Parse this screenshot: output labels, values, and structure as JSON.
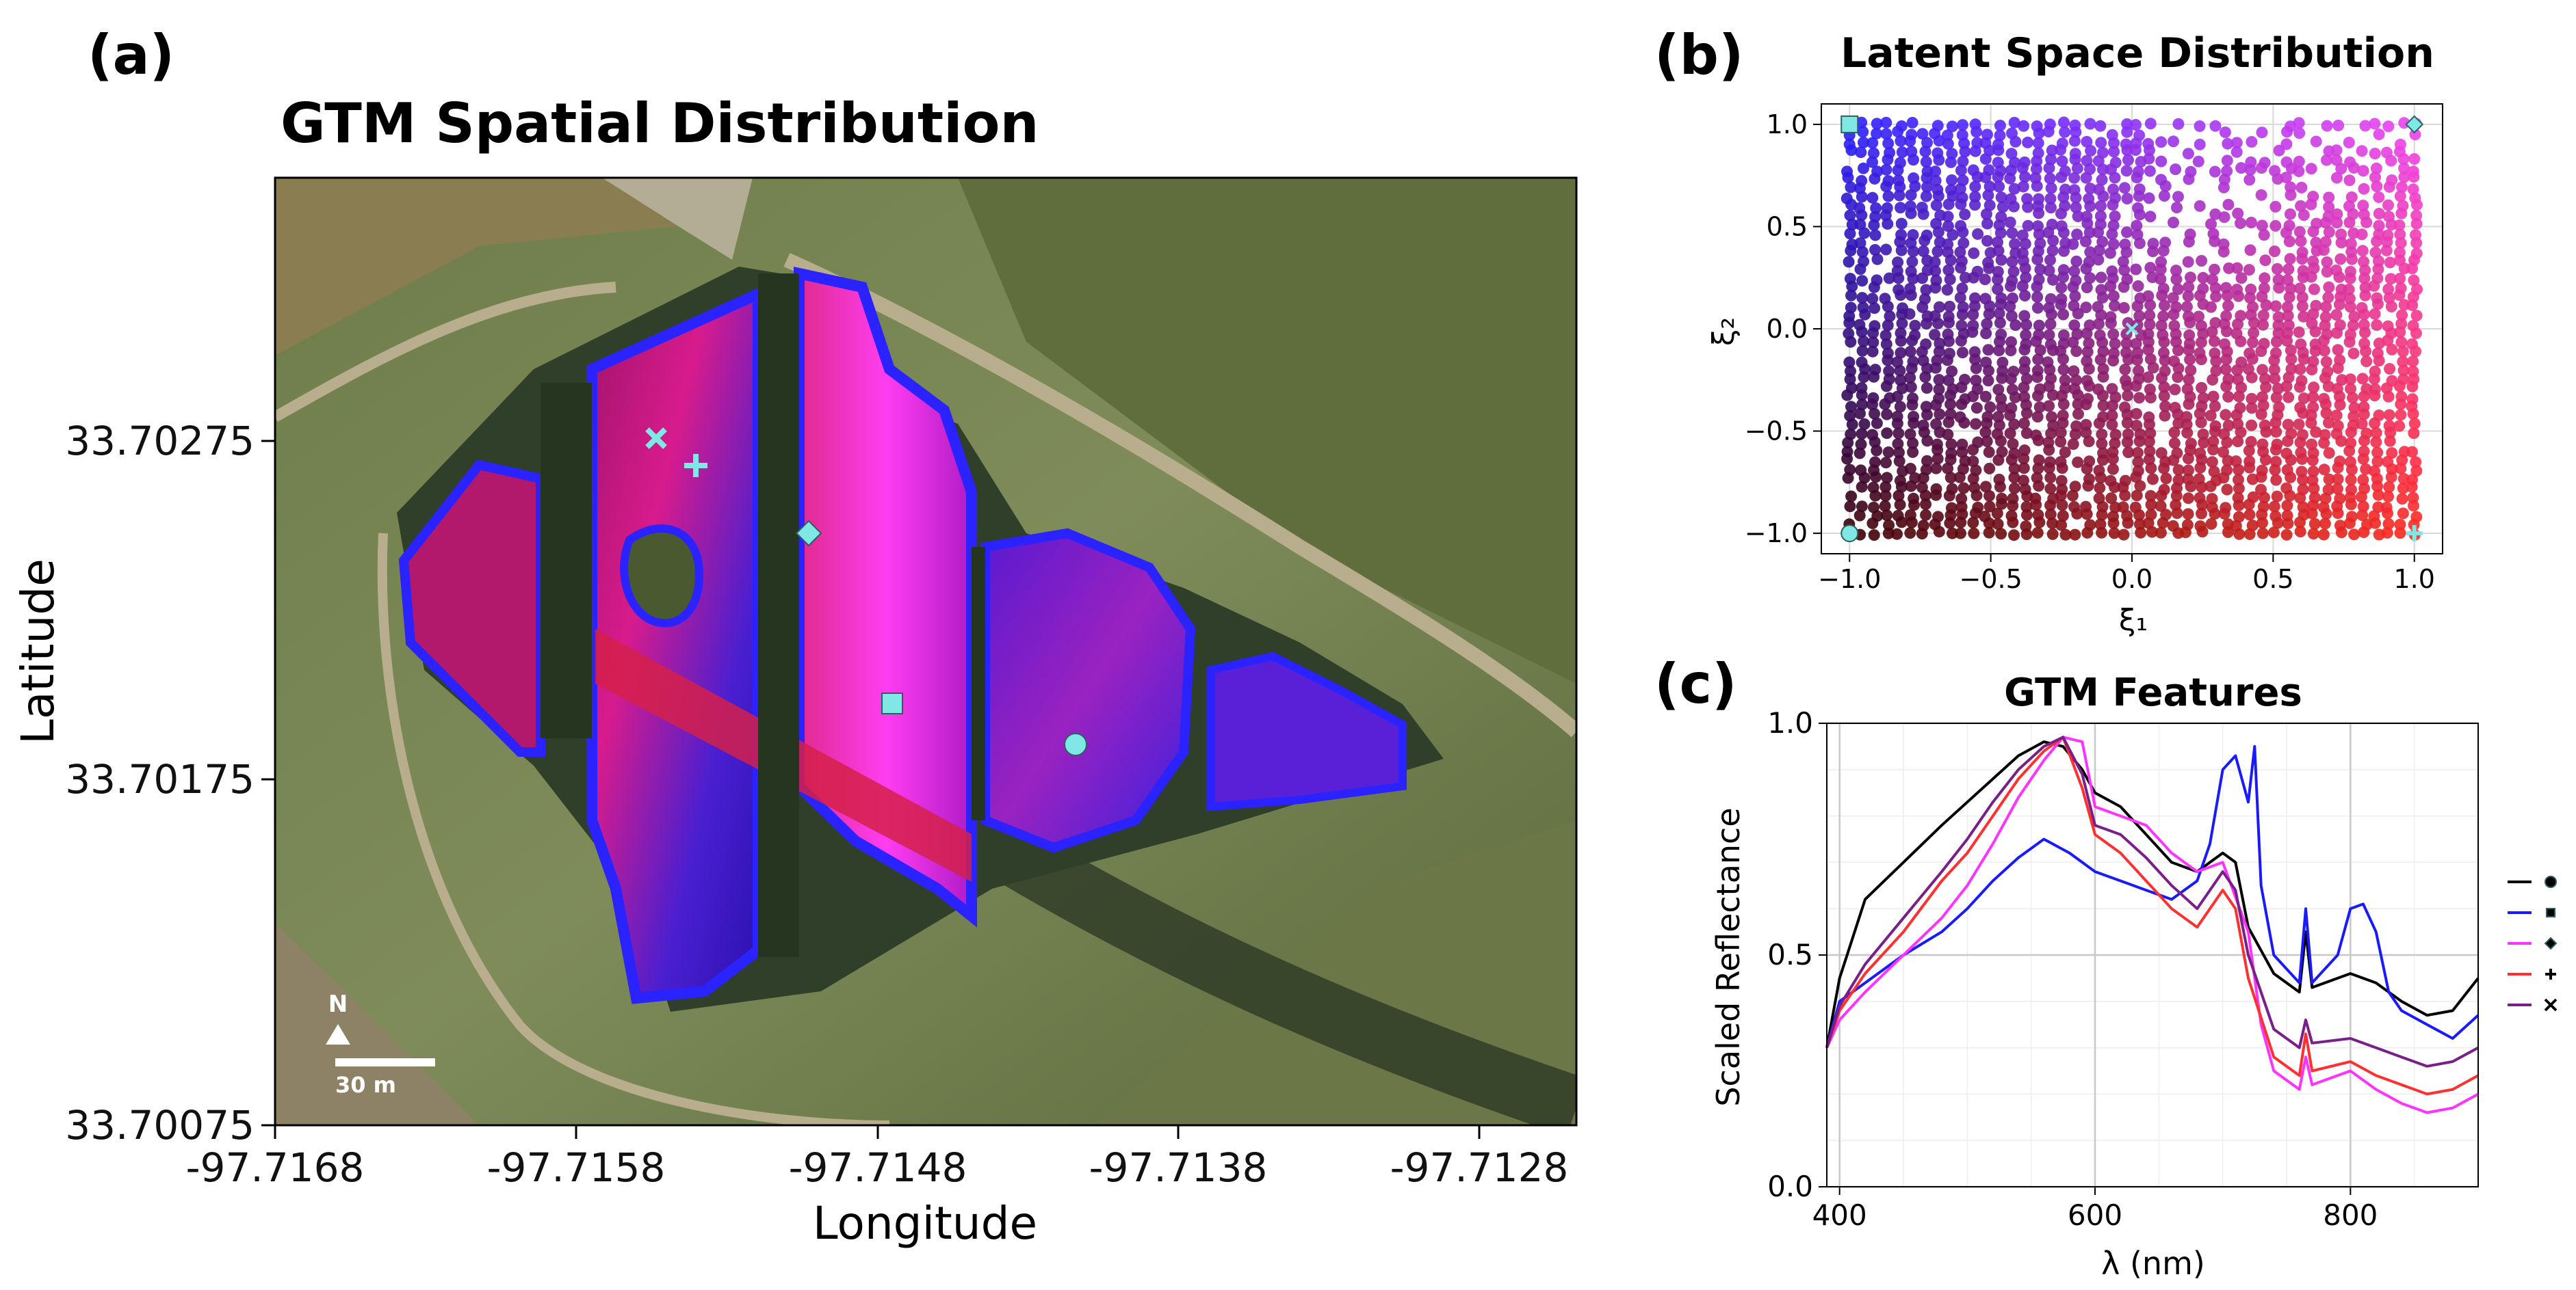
{
  "panels": {
    "a": "(a)",
    "b": "(b)",
    "c": "(c)"
  },
  "map": {
    "title": "GTM Spatial Distribution",
    "xlabel": "Longitude",
    "ylabel": "Latitude",
    "xticks": [
      "-97.7168",
      "-97.7158",
      "-97.7148",
      "-97.7138",
      "-97.7128"
    ],
    "yticks": [
      "33.70275",
      "33.70175",
      "33.70075"
    ],
    "north_label": "N",
    "scale_label": "30 m",
    "markers": [
      {
        "shape": "x",
        "name": "x-marker"
      },
      {
        "shape": "plus",
        "name": "plus-marker"
      },
      {
        "shape": "diamond",
        "name": "diamond-marker"
      },
      {
        "shape": "square",
        "name": "square-marker"
      },
      {
        "shape": "circle",
        "name": "circle-marker"
      }
    ],
    "colors": {
      "marker": "#7fe8e4",
      "low_latent": "#c2185b",
      "high_latent": "#2020ff",
      "magenta": "#ff33ff"
    }
  },
  "chart_data": [
    {
      "id": "latent",
      "type": "scatter",
      "title": "Latent Space Distribution",
      "xlabel": "ξ₁",
      "ylabel": "ξ₂",
      "xlim": [
        -1.1,
        1.1
      ],
      "ylim": [
        -1.1,
        1.1
      ],
      "xticks": [
        -1.0,
        -0.5,
        0.0,
        0.5,
        1.0
      ],
      "yticks": [
        -1.0,
        -0.5,
        0.0,
        0.5,
        1.0
      ],
      "xtick_labels": [
        "−1.0",
        "−0.5",
        "0.0",
        "0.5",
        "1.0"
      ],
      "ytick_labels": [
        "−1.0",
        "−0.5",
        "0.0",
        "0.5",
        "1.0"
      ],
      "grid": true,
      "color_corners": {
        "left_bottom": "#3a0008",
        "right_bottom": "#ff2a20",
        "left_top": "#2a1fff",
        "right_top": "#ee44ee"
      },
      "feature_markers": [
        {
          "shape": "square",
          "x": -1.0,
          "y": 1.0
        },
        {
          "shape": "diamond",
          "x": 1.0,
          "y": 1.0
        },
        {
          "shape": "circle",
          "x": -1.0,
          "y": -1.0
        },
        {
          "shape": "plus",
          "x": 1.0,
          "y": -1.0
        },
        {
          "shape": "x",
          "x": 0.0,
          "y": 0.0
        }
      ]
    },
    {
      "id": "features",
      "type": "line",
      "title": "GTM Features",
      "xlabel": "λ (nm)",
      "ylabel": "Scaled Reflectance",
      "xlim": [
        390,
        900
      ],
      "ylim": [
        0.0,
        1.0
      ],
      "xticks": [
        400,
        600,
        800
      ],
      "yticks": [
        0.0,
        0.5,
        1.0
      ],
      "ytick_labels": [
        "0.0",
        "0.5",
        "1.0"
      ],
      "grid": true,
      "legend_position": "right",
      "series": [
        {
          "marker": "circle",
          "color": "#000000",
          "x": [
            390,
            400,
            420,
            450,
            480,
            500,
            520,
            540,
            560,
            575,
            590,
            600,
            620,
            640,
            660,
            680,
            700,
            710,
            720,
            740,
            760,
            765,
            770,
            800,
            820,
            840,
            860,
            880,
            900
          ],
          "y": [
            0.3,
            0.45,
            0.62,
            0.7,
            0.78,
            0.83,
            0.88,
            0.93,
            0.96,
            0.95,
            0.9,
            0.85,
            0.82,
            0.76,
            0.7,
            0.68,
            0.72,
            0.7,
            0.56,
            0.46,
            0.42,
            0.55,
            0.43,
            0.46,
            0.44,
            0.4,
            0.37,
            0.38,
            0.45
          ]
        },
        {
          "marker": "square",
          "color": "#1a1aff",
          "x": [
            390,
            400,
            420,
            450,
            480,
            500,
            520,
            540,
            560,
            580,
            600,
            620,
            640,
            660,
            680,
            690,
            700,
            710,
            720,
            725,
            730,
            740,
            760,
            765,
            770,
            790,
            800,
            810,
            820,
            830,
            840,
            860,
            880,
            900
          ],
          "y": [
            0.3,
            0.4,
            0.44,
            0.5,
            0.55,
            0.6,
            0.66,
            0.71,
            0.75,
            0.72,
            0.68,
            0.66,
            0.64,
            0.62,
            0.66,
            0.74,
            0.9,
            0.93,
            0.83,
            0.95,
            0.65,
            0.5,
            0.44,
            0.6,
            0.44,
            0.5,
            0.6,
            0.61,
            0.55,
            0.42,
            0.38,
            0.35,
            0.32,
            0.37
          ]
        },
        {
          "marker": "diamond",
          "color": "#ff33ff",
          "x": [
            390,
            400,
            420,
            450,
            480,
            500,
            520,
            540,
            560,
            575,
            590,
            600,
            620,
            640,
            660,
            680,
            700,
            720,
            730,
            740,
            760,
            765,
            770,
            800,
            820,
            840,
            860,
            880,
            900
          ],
          "y": [
            0.3,
            0.36,
            0.42,
            0.5,
            0.58,
            0.65,
            0.74,
            0.84,
            0.92,
            0.97,
            0.96,
            0.82,
            0.8,
            0.78,
            0.72,
            0.68,
            0.7,
            0.55,
            0.35,
            0.25,
            0.21,
            0.28,
            0.22,
            0.25,
            0.21,
            0.18,
            0.16,
            0.17,
            0.2
          ]
        },
        {
          "marker": "plus",
          "color": "#ff3030",
          "x": [
            390,
            400,
            420,
            450,
            480,
            500,
            520,
            540,
            560,
            575,
            590,
            600,
            620,
            640,
            660,
            680,
            700,
            710,
            720,
            740,
            760,
            765,
            770,
            800,
            820,
            840,
            860,
            880,
            900
          ],
          "y": [
            0.3,
            0.38,
            0.46,
            0.55,
            0.66,
            0.72,
            0.8,
            0.88,
            0.94,
            0.97,
            0.86,
            0.76,
            0.72,
            0.66,
            0.6,
            0.56,
            0.64,
            0.6,
            0.45,
            0.28,
            0.24,
            0.33,
            0.25,
            0.27,
            0.24,
            0.22,
            0.2,
            0.21,
            0.24
          ]
        },
        {
          "marker": "x",
          "color": "#7a1f8a",
          "x": [
            390,
            400,
            420,
            450,
            480,
            500,
            520,
            540,
            560,
            575,
            590,
            600,
            620,
            640,
            660,
            680,
            700,
            710,
            720,
            740,
            760,
            765,
            770,
            800,
            820,
            840,
            860,
            880,
            900
          ],
          "y": [
            0.3,
            0.39,
            0.48,
            0.58,
            0.68,
            0.75,
            0.83,
            0.9,
            0.95,
            0.97,
            0.89,
            0.78,
            0.76,
            0.71,
            0.65,
            0.6,
            0.68,
            0.64,
            0.5,
            0.34,
            0.3,
            0.36,
            0.31,
            0.32,
            0.3,
            0.28,
            0.26,
            0.27,
            0.3
          ]
        }
      ]
    }
  ]
}
